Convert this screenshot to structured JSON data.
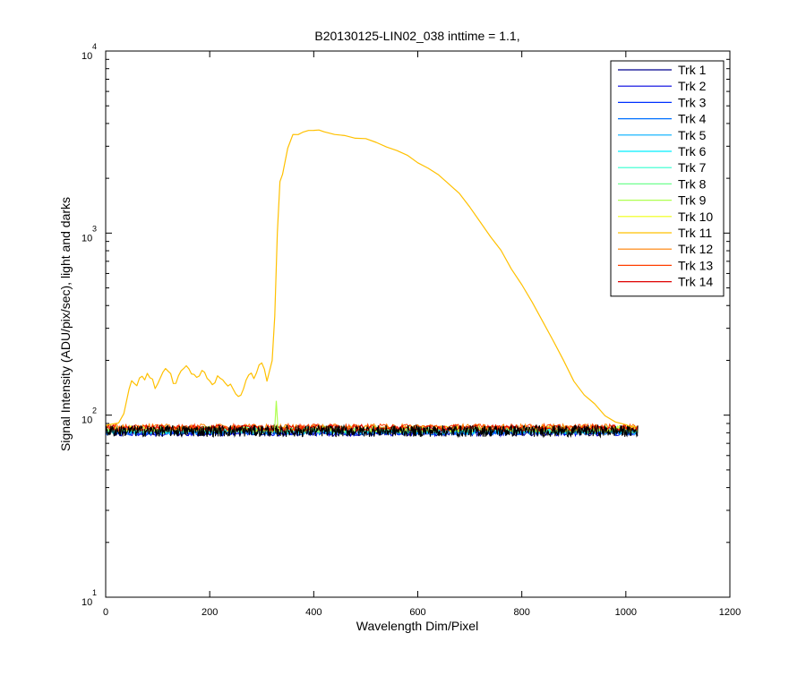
{
  "chart_data": {
    "type": "line",
    "title": "B20130125-LIN02_038 inttime = 1.1,",
    "xlabel": "Wavelength Dim/Pixel",
    "ylabel": "Signal Intensity (ADU/pix/sec), light and darks",
    "xlim": [
      0,
      1200
    ],
    "ylim": [
      10,
      10000
    ],
    "yscale": "log",
    "grid": false,
    "legend_position": "top-right",
    "x_ticks": [
      0,
      200,
      400,
      600,
      800,
      1000,
      1200
    ],
    "x_tick_labels": [
      "0",
      "200",
      "400",
      "600",
      "800",
      "1000",
      "1200"
    ],
    "y_ticks": [
      10,
      100,
      1000,
      10000
    ],
    "y_tick_labels": [
      {
        "base": "10",
        "exp": "1"
      },
      {
        "base": "10",
        "exp": "2"
      },
      {
        "base": "10",
        "exp": "3"
      },
      {
        "base": "10",
        "exp": "4"
      }
    ],
    "series": [
      {
        "name": "Trk 1",
        "color": "#00008F",
        "baseline": 80
      },
      {
        "name": "Trk 2",
        "color": "#0000DF",
        "baseline": 80
      },
      {
        "name": "Trk 3",
        "color": "#0030FF",
        "baseline": 81
      },
      {
        "name": "Trk 4",
        "color": "#0070FF",
        "baseline": 81
      },
      {
        "name": "Trk 5",
        "color": "#00AFFF",
        "baseline": 82
      },
      {
        "name": "Trk 6",
        "color": "#00EFFF",
        "baseline": 82
      },
      {
        "name": "Trk 7",
        "color": "#30FFCF",
        "baseline": 83
      },
      {
        "name": "Trk 8",
        "color": "#70FF8F",
        "baseline": 83
      },
      {
        "name": "Trk 9",
        "color": "#AFFF50",
        "baseline": 84,
        "spike": {
          "x": [
            325,
            328,
            331,
            334
          ],
          "y": [
            85,
            120,
            85,
            84
          ]
        }
      },
      {
        "name": "Trk 10",
        "color": "#EFFF10",
        "baseline": 84
      },
      {
        "name": "Trk 11",
        "color": "#FFC000",
        "baseline": 85,
        "points": {
          "x": [
            0,
            25,
            35,
            45,
            50,
            55,
            60,
            65,
            70,
            75,
            80,
            85,
            90,
            95,
            100,
            105,
            110,
            115,
            120,
            125,
            130,
            135,
            140,
            145,
            150,
            155,
            160,
            165,
            170,
            175,
            180,
            185,
            190,
            195,
            200,
            205,
            210,
            215,
            220,
            225,
            230,
            235,
            240,
            245,
            250,
            255,
            260,
            265,
            270,
            275,
            280,
            285,
            290,
            295,
            300,
            305,
            310,
            315,
            320,
            325,
            330,
            335,
            340,
            350,
            360,
            370,
            380,
            390,
            400,
            410,
            420,
            440,
            460,
            480,
            500,
            520,
            540,
            560,
            580,
            600,
            620,
            640,
            660,
            680,
            700,
            720,
            740,
            760,
            780,
            800,
            820,
            840,
            860,
            880,
            900,
            920,
            940,
            960,
            980,
            1000,
            1010,
            1020
          ],
          "y": [
            88,
            90,
            102,
            140,
            155,
            150,
            145,
            160,
            165,
            155,
            170,
            162,
            158,
            140,
            150,
            160,
            172,
            180,
            176,
            168,
            150,
            148,
            165,
            175,
            182,
            185,
            178,
            170,
            168,
            160,
            165,
            175,
            172,
            160,
            155,
            148,
            150,
            165,
            160,
            155,
            150,
            145,
            148,
            140,
            132,
            126,
            130,
            140,
            155,
            165,
            172,
            160,
            170,
            190,
            195,
            180,
            155,
            175,
            200,
            350,
            1000,
            1900,
            2100,
            2900,
            3500,
            3500,
            3600,
            3650,
            3700,
            3650,
            3600,
            3500,
            3450,
            3350,
            3300,
            3150,
            3000,
            2850,
            2650,
            2450,
            2250,
            2080,
            1850,
            1650,
            1400,
            1150,
            960,
            800,
            640,
            520,
            420,
            330,
            260,
            200,
            155,
            130,
            115,
            100,
            92,
            88,
            87,
            87
          ]
        }
      },
      {
        "name": "Trk 12",
        "color": "#FF7F00",
        "baseline": 86
      },
      {
        "name": "Trk 13",
        "color": "#FF3F00",
        "baseline": 86
      },
      {
        "name": "Trk 14",
        "color": "#DF0000",
        "baseline": 85
      }
    ],
    "dark_noise": {
      "x_start": 0,
      "x_end": 1023,
      "y_low": 76,
      "y_high": 88,
      "color": "#000000"
    }
  }
}
